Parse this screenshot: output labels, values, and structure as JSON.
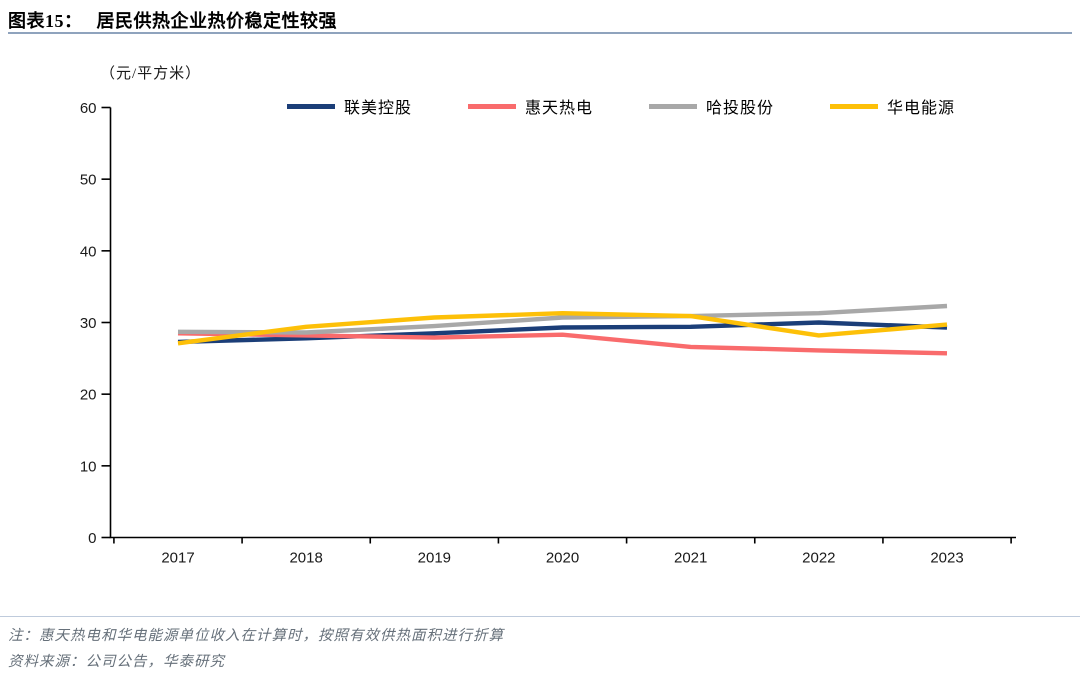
{
  "header": {
    "label": "图表15：",
    "title": "居民供热企业热价稳定性较强"
  },
  "chart_data": {
    "type": "line",
    "title": "居民供热企业热价稳定性较强",
    "ylabel": "（元/平方米）",
    "categories": [
      "2017",
      "2018",
      "2019",
      "2020",
      "2021",
      "2022",
      "2023"
    ],
    "series": [
      {
        "name": "联美控股",
        "color": "#1b3e78",
        "values": [
          27.3,
          27.8,
          28.5,
          29.3,
          29.4,
          30.0,
          29.3
        ]
      },
      {
        "name": "惠天热电",
        "color": "#f96b6c",
        "values": [
          28.5,
          28.2,
          27.9,
          28.3,
          26.6,
          26.1,
          25.7
        ]
      },
      {
        "name": "哈投股份",
        "color": "#a8a8a8",
        "values": [
          28.7,
          28.6,
          29.5,
          30.7,
          30.9,
          31.3,
          32.3
        ]
      },
      {
        "name": "华电能源",
        "color": "#fdc008",
        "values": [
          27.1,
          29.4,
          30.7,
          31.3,
          30.9,
          28.2,
          29.7
        ]
      }
    ],
    "ylim": [
      0,
      60
    ],
    "ytick_step": 10,
    "legend_position": "top",
    "grid": false,
    "axis_color": "#000000"
  },
  "footer": {
    "note": "注：惠天热电和华电能源单位收入在计算时，按照有效供热面积进行折算",
    "source": "资料来源：公司公告，华泰研究"
  }
}
